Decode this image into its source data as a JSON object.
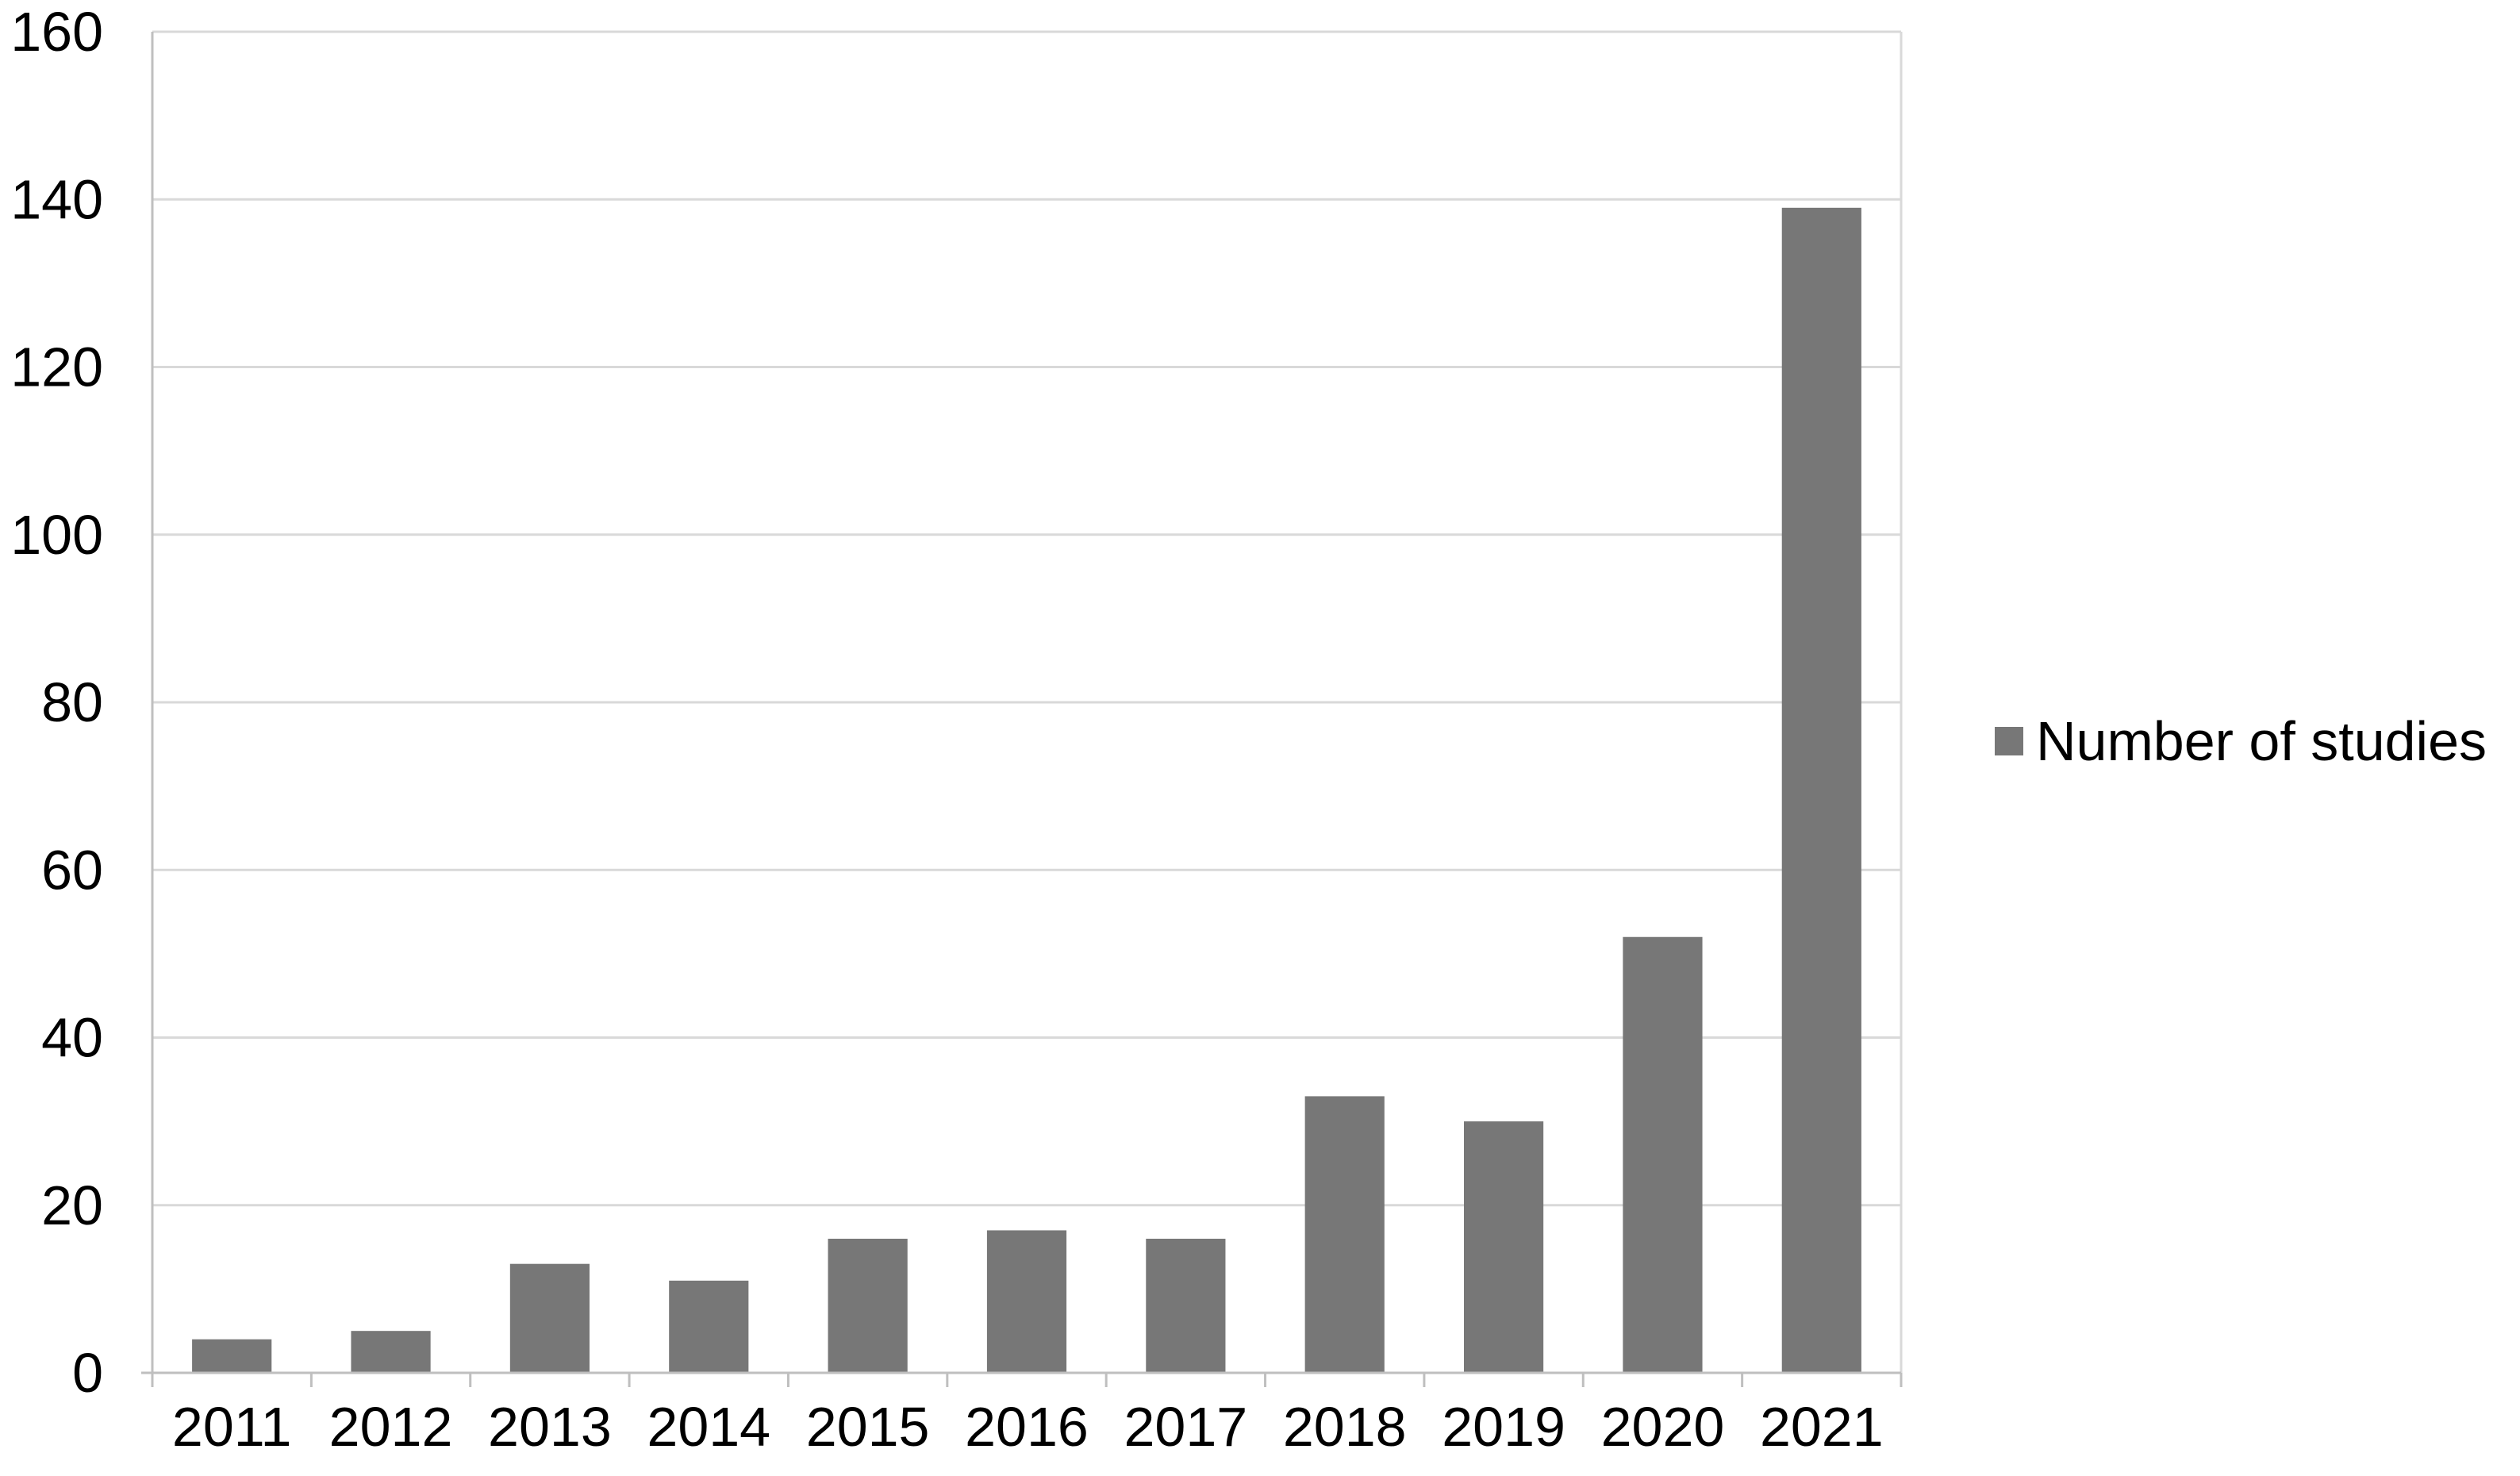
{
  "chart_data": {
    "type": "bar",
    "categories": [
      "2011",
      "2012",
      "2013",
      "2014",
      "2015",
      "2016",
      "2017",
      "2018",
      "2019",
      "2020",
      "2021"
    ],
    "series": [
      {
        "name": "Number of studies",
        "values": [
          4,
          5,
          13,
          11,
          16,
          17,
          16,
          33,
          30,
          52,
          139
        ],
        "color": "#777777"
      }
    ],
    "title": "",
    "xlabel": "",
    "ylabel": "",
    "ylim": [
      0,
      160
    ],
    "yticks": [
      "0",
      "20",
      "40",
      "60",
      "80",
      "100",
      "120",
      "140",
      "160"
    ],
    "grid": true,
    "legend_position": "right"
  }
}
